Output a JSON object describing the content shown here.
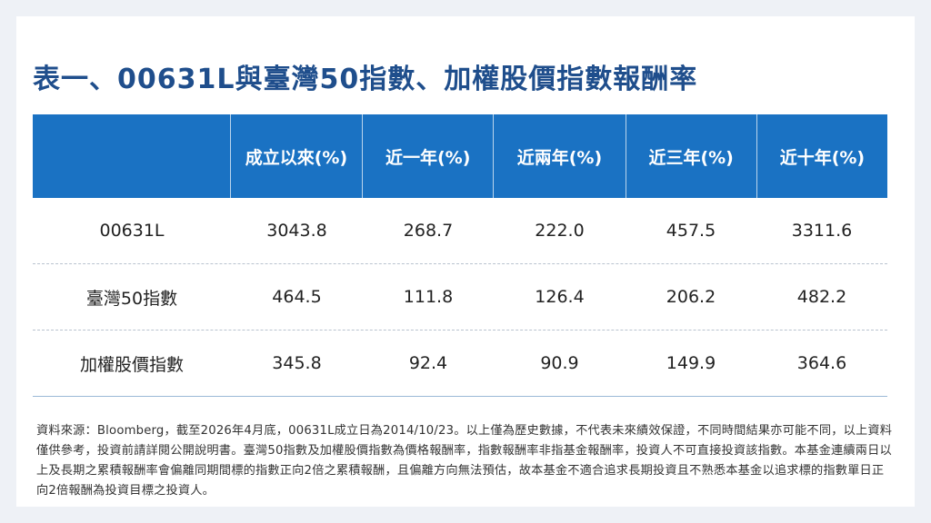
{
  "title": "表一、00631L與臺灣50指數、加權股價指數報酬率",
  "table": {
    "headers": [
      "成立以來(%)",
      "近一年(%)",
      "近兩年(%)",
      "近三年(%)",
      "近十年(%)"
    ],
    "rows": [
      {
        "label": "00631L",
        "values": [
          "3043.8",
          "268.7",
          "222.0",
          "457.5",
          "3311.6"
        ]
      },
      {
        "label": "臺灣50指數",
        "values": [
          "464.5",
          "111.8",
          "126.4",
          "206.2",
          "482.2"
        ]
      },
      {
        "label": "加權股價指數",
        "values": [
          "345.8",
          "92.4",
          "90.9",
          "149.9",
          "364.6"
        ]
      }
    ]
  },
  "note": "資料來源：Bloomberg，截至2026年4月底，00631L成立日為2014/10/23。以上僅為歷史數據，不代表未來績效保證，不同時間結果亦可能不同，以上資料僅供參考，投資前請詳閱公開說明書。臺灣50指數及加權股價指數為價格報酬率，指數報酬率非指基金報酬率，投資人不可直接投資該指數。本基金連續兩日以上及長期之累積報酬率會偏離同期間標的指數正向2倍之累積報酬，且偏離方向無法預估，故本基金不適合追求長期投資且不熟悉本基金以追求標的指數單日正向2倍報酬為投資目標之投資人。"
}
